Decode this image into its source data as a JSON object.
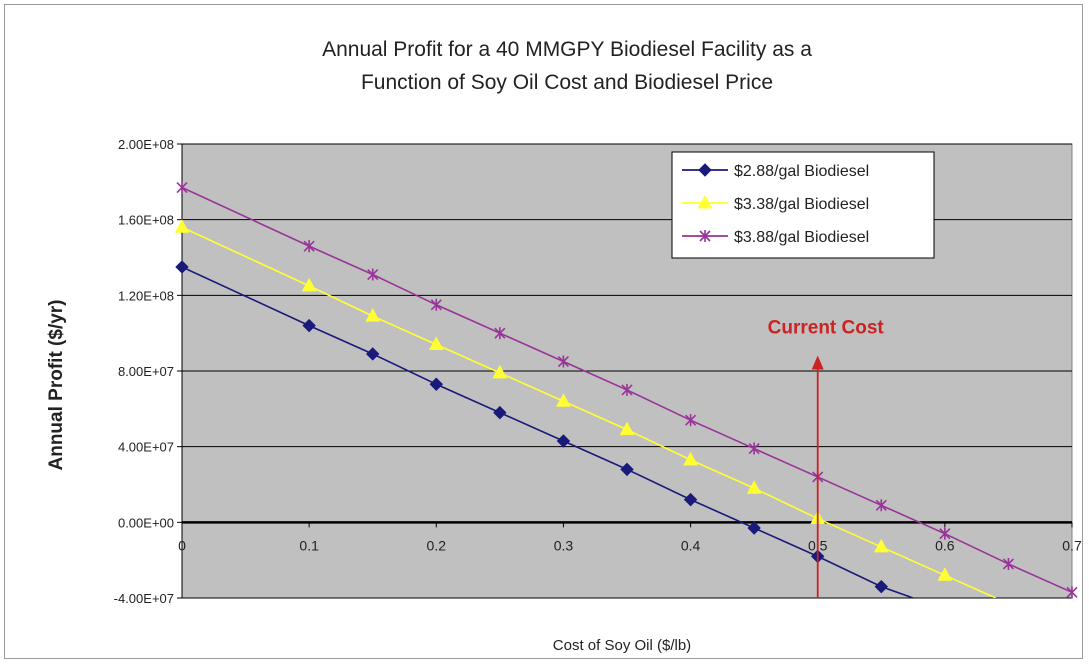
{
  "chart_data": {
    "type": "line",
    "title": "Annual Profit for a 40 MMGPY Biodiesel Facility as a",
    "subtitle": "Function of Soy Oil Cost and Biodiesel Price",
    "xlabel": "Cost of Soy Oil ($/lb)",
    "ylabel": "Annual Profit ($/yr)",
    "xlim": [
      0,
      0.7
    ],
    "ylim": [
      -40000000,
      200000000
    ],
    "x_ticks": [
      "0",
      "0.1",
      "0.2",
      "0.3",
      "0.4",
      "0.5",
      "0.6",
      "0.7"
    ],
    "y_ticks": [
      "-4.00E+07",
      "0.00E+00",
      "4.00E+07",
      "8.00E+07",
      "1.20E+08",
      "1.60E+08",
      "2.00E+08"
    ],
    "grid": true,
    "legend_position": "top-right",
    "series": [
      {
        "name": "$2.88/gal Biodiesel",
        "color": "#1a1a7a",
        "marker": "diamond",
        "x": [
          0,
          0.1,
          0.15,
          0.2,
          0.25,
          0.3,
          0.35,
          0.4,
          0.45,
          0.5,
          0.55
        ],
        "y": [
          135000000,
          104000000,
          89000000,
          73000000,
          58000000,
          43000000,
          28000000,
          12000000,
          -3000000,
          -18000000,
          -34000000
        ],
        "line_end": [
          0.575,
          -40000000
        ]
      },
      {
        "name": "$3.38/gal Biodiesel",
        "color": "#ffff33",
        "marker": "triangle",
        "x": [
          0,
          0.1,
          0.15,
          0.2,
          0.25,
          0.3,
          0.35,
          0.4,
          0.45,
          0.5,
          0.55,
          0.6
        ],
        "y": [
          156000000,
          125000000,
          109000000,
          94000000,
          79000000,
          64000000,
          49000000,
          33000000,
          18000000,
          2000000,
          -13000000,
          -28000000
        ],
        "line_end": [
          0.64,
          -40000000
        ]
      },
      {
        "name": "$3.88/gal Biodiesel",
        "color": "#993399",
        "marker": "star",
        "x": [
          0,
          0.1,
          0.15,
          0.2,
          0.25,
          0.3,
          0.35,
          0.4,
          0.45,
          0.5,
          0.55,
          0.6,
          0.65,
          0.7
        ],
        "y": [
          177000000,
          146000000,
          131000000,
          115000000,
          100000000,
          85000000,
          70000000,
          54000000,
          39000000,
          24000000,
          9000000,
          -6000000,
          -22000000,
          -37000000
        ]
      }
    ],
    "annotations": [
      {
        "text": "Current Cost",
        "color": "#cc2222",
        "arrow_x": 0.5,
        "arrow_from_y": -40000000,
        "arrow_to_y": 85000000
      }
    ]
  },
  "colors": {
    "plot_bg": "#c0c0c0",
    "grid": "#000000",
    "annotation": "#cc2222"
  }
}
